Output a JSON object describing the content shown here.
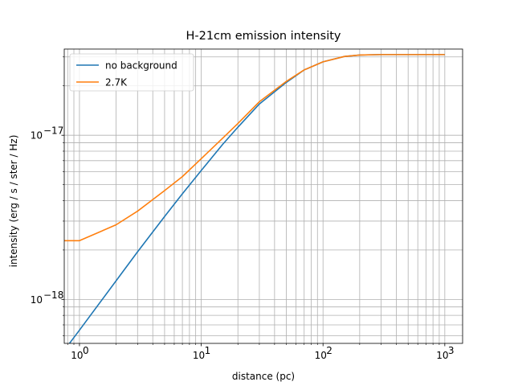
{
  "chart_data": {
    "type": "line",
    "title": "H-21cm emission intensity",
    "xlabel": "distance (pc)",
    "ylabel": "intensity (erg / s / ster / Hz)",
    "xscale": "log",
    "yscale": "log",
    "xlim": [
      0.75,
      1400
    ],
    "ylim": [
      5.4e-19,
      3.35e-17
    ],
    "grid": "major and minor",
    "legend_position": "upper left",
    "x_ticks": [
      {
        "value": 1,
        "label": "10",
        "exp": "0"
      },
      {
        "value": 10,
        "label": "10",
        "exp": "1"
      },
      {
        "value": 100,
        "label": "10",
        "exp": "2"
      },
      {
        "value": 1000,
        "label": "10",
        "exp": "3"
      }
    ],
    "y_ticks": [
      {
        "value": 1e-18,
        "label": "10",
        "exp": "−18"
      },
      {
        "value": 1e-17,
        "label": "10",
        "exp": "−17"
      }
    ],
    "series": [
      {
        "name": "no background",
        "color": "#1f77b4",
        "x": [
          0.75,
          1,
          2,
          3,
          5,
          7,
          10,
          15,
          20,
          30,
          50,
          70,
          100,
          150,
          200,
          300,
          500,
          700,
          1000
        ],
        "y": [
          4.9e-19,
          6.5e-19,
          1.3e-18,
          1.95e-18,
          3.2e-18,
          4.4e-18,
          6.1e-18,
          8.8e-18,
          1.12e-17,
          1.55e-17,
          2.1e-17,
          2.5e-17,
          2.8e-17,
          3.02e-17,
          3.08e-17,
          3.1e-17,
          3.1e-17,
          3.1e-17,
          3.1e-17
        ]
      },
      {
        "name": "2.7K",
        "color": "#ff7f0e",
        "x": [
          0.75,
          1,
          2,
          3,
          5,
          7,
          10,
          15,
          20,
          30,
          50,
          70,
          100,
          150,
          200,
          300,
          500,
          700,
          1000
        ],
        "y": [
          2.28e-18,
          2.28e-18,
          2.85e-18,
          3.45e-18,
          4.6e-18,
          5.6e-18,
          7.2e-18,
          9.6e-18,
          1.18e-17,
          1.6e-17,
          2.13e-17,
          2.5e-17,
          2.8e-17,
          3.02e-17,
          3.08e-17,
          3.1e-17,
          3.1e-17,
          3.1e-17,
          3.1e-17
        ]
      }
    ]
  }
}
